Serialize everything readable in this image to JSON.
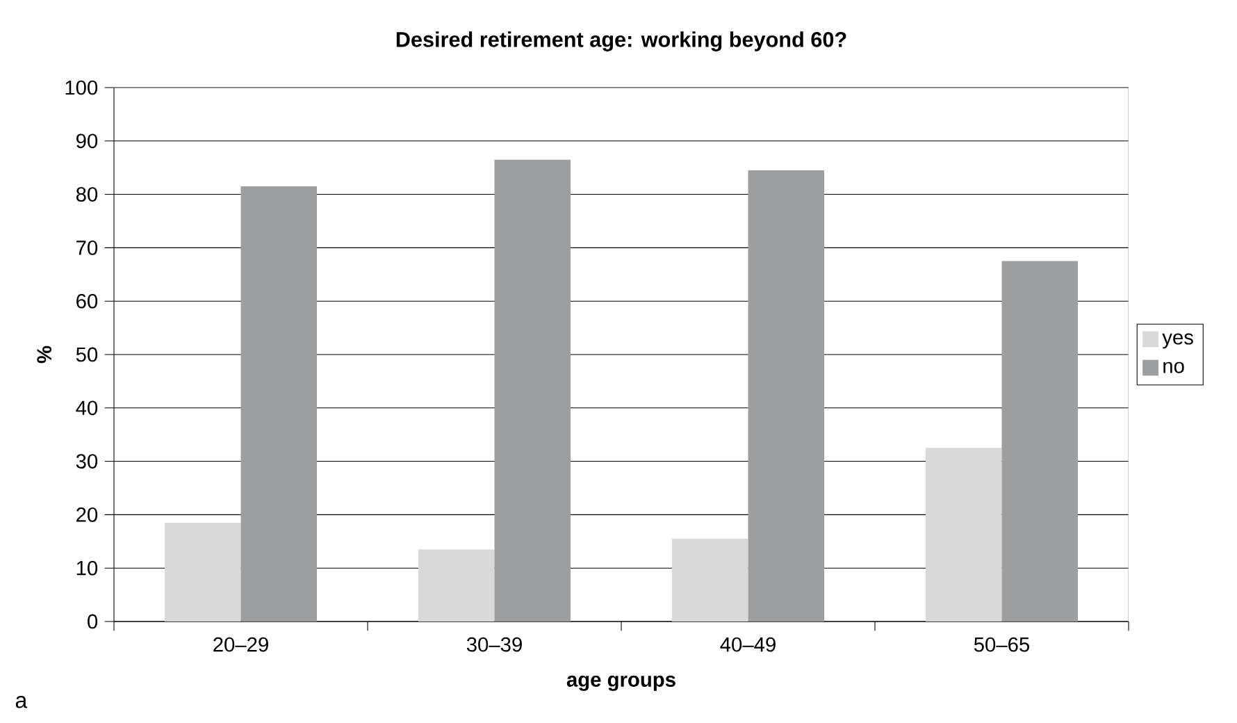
{
  "chart_data": {
    "type": "bar",
    "title": "Desired retirement age: working beyond 60?",
    "xlabel": "age groups",
    "ylabel": "%",
    "categories": [
      "20–29",
      "30–39",
      "40–49",
      "50–65"
    ],
    "series": [
      {
        "name": "yes",
        "color": "#d9d9d9",
        "values": [
          18.5,
          13.5,
          15.5,
          32.5
        ]
      },
      {
        "name": "no",
        "color": "#9d9ea0",
        "values": [
          81.5,
          86.5,
          84.5,
          67.5
        ]
      }
    ],
    "ylim": [
      0,
      100
    ],
    "yticks": [
      0,
      10,
      20,
      30,
      40,
      50,
      60,
      70,
      80,
      90,
      100
    ],
    "grid": "y",
    "legend": "right",
    "annotations": [
      "a"
    ]
  }
}
